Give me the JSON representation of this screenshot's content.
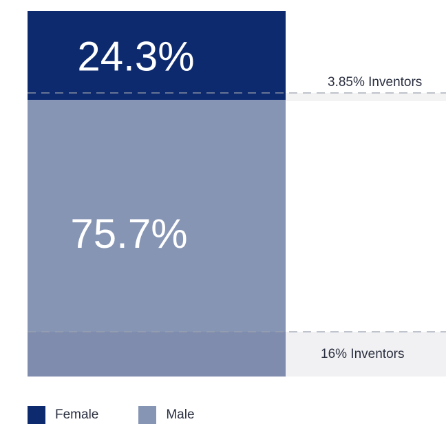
{
  "chart_data": {
    "type": "bar",
    "stacked": true,
    "categories": [
      ""
    ],
    "series": [
      {
        "name": "Female",
        "values": [
          24.3
        ],
        "label": "24.3%",
        "color": "#0e2a6e"
      },
      {
        "name": "Male",
        "values": [
          75.7
        ],
        "label": "75.7%",
        "color": "#8795b4"
      }
    ],
    "ylim": [
      0,
      100
    ],
    "annotations": [
      {
        "text": "3.85% Inventors",
        "band_color": "#f3f3f4",
        "line_style": "dashed"
      },
      {
        "text": "16% Inventors",
        "band_color": "#f1f1f3",
        "line_style": "dashed"
      }
    ],
    "legend": {
      "placement": "bottom-left"
    },
    "grid": false
  }
}
